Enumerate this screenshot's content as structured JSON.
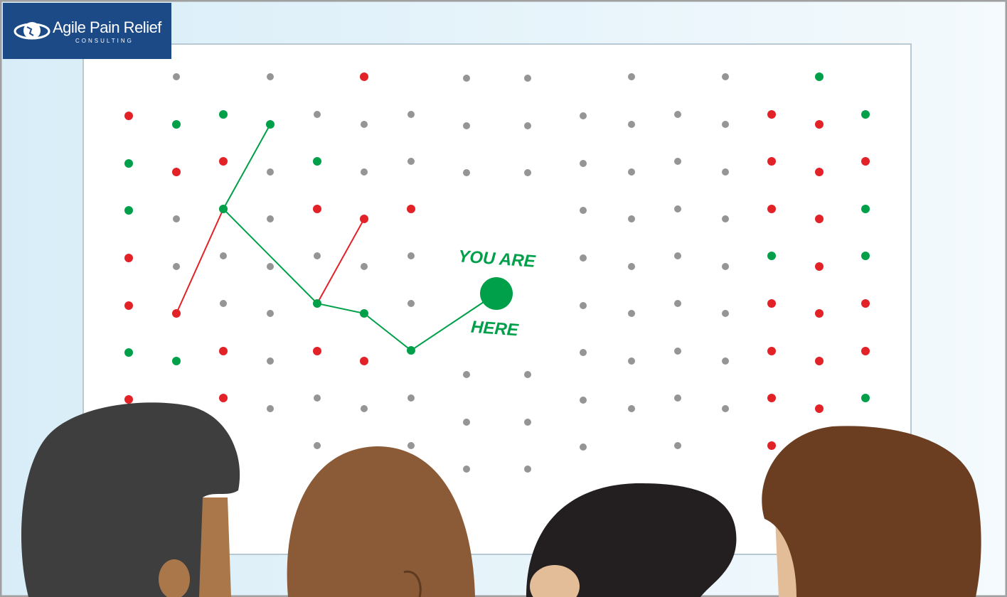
{
  "logo": {
    "name": "Agile Pain Relief",
    "subtitle": "CONSULTING"
  },
  "board": {
    "label_top": "YOU ARE",
    "label_bottom": "HERE"
  },
  "colors": {
    "green": "#00a04a",
    "red": "#e32228",
    "gray": "#959595",
    "logo_bg": "#1c4a86",
    "background": "#dff0f9"
  }
}
